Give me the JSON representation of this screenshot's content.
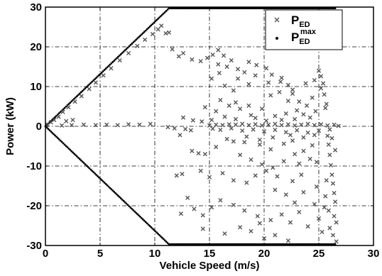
{
  "chart_data": {
    "type": "scatter",
    "xlabel": "Vehicle Speed (m/s)",
    "ylabel": "Power (kW)",
    "xlim": [
      0,
      30
    ],
    "ylim": [
      -30,
      30
    ],
    "xticks": [
      0,
      5,
      10,
      15,
      20,
      25,
      30
    ],
    "yticks": [
      -30,
      -20,
      -10,
      0,
      10,
      20,
      30
    ],
    "grid": true,
    "legend_placement": "top-right",
    "legend": [
      {
        "base": "P",
        "sub": "ED",
        "sup": "",
        "marker": "x"
      },
      {
        "base": "P",
        "sub": "ED",
        "sup": "max",
        "marker": "dot"
      }
    ],
    "series": [
      {
        "legend_index": 1,
        "marker": "dot",
        "color": "#000000",
        "segments": [
          {
            "from": [
              0,
              0
            ],
            "to": [
              11.3,
              29.7
            ],
            "points": 90
          },
          {
            "from": [
              11.3,
              29.7
            ],
            "to": [
              26.5,
              29.7
            ],
            "points": 150
          },
          {
            "from": [
              0,
              0
            ],
            "to": [
              11.3,
              -29.7
            ],
            "points": 90
          },
          {
            "from": [
              11.3,
              -29.7
            ],
            "to": [
              26.5,
              -29.7
            ],
            "points": 150
          }
        ]
      },
      {
        "legend_index": 0,
        "marker": "x",
        "color": "#555555",
        "points": [
          [
            0.2,
            0.4
          ],
          [
            0.5,
            1.0
          ],
          [
            0.8,
            1.6
          ],
          [
            1.2,
            2.4
          ],
          [
            1.6,
            3.6
          ],
          [
            2.1,
            4.8
          ],
          [
            2.7,
            6.2
          ],
          [
            3.3,
            7.6
          ],
          [
            4.0,
            9.4
          ],
          [
            4.6,
            11.0
          ],
          [
            5.3,
            12.8
          ],
          [
            6.0,
            14.6
          ],
          [
            6.8,
            16.6
          ],
          [
            7.6,
            18.4
          ],
          [
            8.4,
            20.2
          ],
          [
            9.1,
            21.8
          ],
          [
            9.8,
            23.2
          ],
          [
            10.3,
            24.4
          ],
          [
            10.6,
            25.3
          ],
          [
            11.0,
            23.4
          ],
          [
            11.3,
            23.6
          ],
          [
            1.5,
            0.2
          ],
          [
            2.4,
            0.3
          ],
          [
            3.5,
            0.4
          ],
          [
            4.6,
            0.3
          ],
          [
            5.6,
            0.4
          ],
          [
            6.6,
            0.3
          ],
          [
            7.6,
            0.5
          ],
          [
            8.6,
            0.4
          ],
          [
            9.6,
            0.6
          ],
          [
            1.9,
            1.3
          ],
          [
            2.5,
            1.6
          ],
          [
            11.2,
            -0.2
          ],
          [
            11.8,
            -0.5
          ],
          [
            12.8,
            -0.7
          ],
          [
            13.3,
            -1.0
          ],
          [
            12.3,
            -2.2
          ],
          [
            12.6,
            2.2
          ],
          [
            13.5,
            1.5
          ],
          [
            14.3,
            1.2
          ],
          [
            11.6,
            19.4
          ],
          [
            12.2,
            17.6
          ],
          [
            12.6,
            18.4
          ],
          [
            13.4,
            16.8
          ],
          [
            14.2,
            16.4
          ],
          [
            14.8,
            17.2
          ],
          [
            15.3,
            18.0
          ],
          [
            15.8,
            19.2
          ],
          [
            16.3,
            17.8
          ],
          [
            17.0,
            16.6
          ],
          [
            17.6,
            14.4
          ],
          [
            18.2,
            13.6
          ],
          [
            18.6,
            16.2
          ],
          [
            19.3,
            15.4
          ],
          [
            20.2,
            14.6
          ],
          [
            20.7,
            13.0
          ],
          [
            21.5,
            11.2
          ],
          [
            22.2,
            10.4
          ],
          [
            15.8,
            15.6
          ],
          [
            15.2,
            12.0
          ],
          [
            16.4,
            10.2
          ],
          [
            16.0,
            6.6
          ],
          [
            17.4,
            6.0
          ],
          [
            18.6,
            5.2
          ],
          [
            19.8,
            4.4
          ],
          [
            20.6,
            7.8
          ],
          [
            21.4,
            8.6
          ],
          [
            22.6,
            8.2
          ],
          [
            23.2,
            6.2
          ],
          [
            23.9,
            5.2
          ],
          [
            24.4,
            7.2
          ],
          [
            25.2,
            9.6
          ],
          [
            25.6,
            4.6
          ],
          [
            24.7,
            3.8
          ],
          [
            22.0,
            3.2
          ],
          [
            21.0,
            2.6
          ],
          [
            19.2,
            2.1
          ],
          [
            17.4,
            1.8
          ],
          [
            16.4,
            2.4
          ],
          [
            15.2,
            1.6
          ],
          [
            15.0,
            0.2
          ],
          [
            15.6,
            0.4
          ],
          [
            16.2,
            0.3
          ],
          [
            16.8,
            0.5
          ],
          [
            17.4,
            0.4
          ],
          [
            18.0,
            0.6
          ],
          [
            18.6,
            0.3
          ],
          [
            19.2,
            0.5
          ],
          [
            19.8,
            0.2
          ],
          [
            20.4,
            0.4
          ],
          [
            21.0,
            0.6
          ],
          [
            21.6,
            0.3
          ],
          [
            22.2,
            0.5
          ],
          [
            22.8,
            0.2
          ],
          [
            23.4,
            0.4
          ],
          [
            24.0,
            0.6
          ],
          [
            24.6,
            0.3
          ],
          [
            25.2,
            0.5
          ],
          [
            25.8,
            0.2
          ],
          [
            26.4,
            0.4
          ],
          [
            26.8,
            0.1
          ],
          [
            15.3,
            -0.6
          ],
          [
            16.0,
            -0.9
          ],
          [
            17.0,
            -0.5
          ],
          [
            18.0,
            -1.1
          ],
          [
            19.0,
            -0.8
          ],
          [
            20.0,
            -1.3
          ],
          [
            21.0,
            -0.9
          ],
          [
            22.0,
            -1.5
          ],
          [
            23.0,
            -1.0
          ],
          [
            24.0,
            -1.6
          ],
          [
            25.0,
            -1.1
          ],
          [
            26.0,
            -0.8
          ],
          [
            16.6,
            -3.2
          ],
          [
            18.2,
            -4.0
          ],
          [
            19.6,
            -4.6
          ],
          [
            20.6,
            -5.8
          ],
          [
            21.8,
            -4.4
          ],
          [
            22.6,
            -3.6
          ],
          [
            23.6,
            -2.8
          ],
          [
            24.6,
            -2.2
          ],
          [
            17.8,
            -7.2
          ],
          [
            18.8,
            -8.4
          ],
          [
            19.8,
            -9.6
          ],
          [
            20.8,
            -10.4
          ],
          [
            21.8,
            -8.8
          ],
          [
            22.8,
            -7.0
          ],
          [
            23.6,
            -6.2
          ],
          [
            24.4,
            -4.8
          ],
          [
            13.4,
            -6.2
          ],
          [
            14.0,
            -6.8
          ],
          [
            14.6,
            -7.0
          ],
          [
            15.6,
            -5.2
          ],
          [
            14.2,
            -11.2
          ],
          [
            15.0,
            -12.8
          ],
          [
            16.2,
            -11.8
          ],
          [
            17.2,
            -13.6
          ],
          [
            18.4,
            -14.2
          ],
          [
            19.2,
            -12.4
          ],
          [
            20.2,
            -11.2
          ],
          [
            21.2,
            -12.6
          ],
          [
            22.6,
            -13.8
          ],
          [
            23.4,
            -12.2
          ],
          [
            12.0,
            -12.4
          ],
          [
            12.5,
            -12.0
          ],
          [
            13.0,
            -18.0
          ],
          [
            13.6,
            -20.8
          ],
          [
            14.4,
            -22.4
          ],
          [
            15.2,
            -20.4
          ],
          [
            16.0,
            -18.6
          ],
          [
            17.2,
            -19.8
          ],
          [
            18.2,
            -21.2
          ],
          [
            19.4,
            -22.6
          ],
          [
            20.6,
            -23.6
          ],
          [
            21.6,
            -22.2
          ],
          [
            22.4,
            -24.2
          ],
          [
            23.2,
            -21.6
          ],
          [
            24.0,
            -25.2
          ],
          [
            16.4,
            -27.0
          ],
          [
            17.8,
            -25.4
          ],
          [
            18.8,
            -26.4
          ],
          [
            19.6,
            -24.4
          ],
          [
            20.0,
            -28.2
          ],
          [
            21.0,
            -27.4
          ],
          [
            22.2,
            -28.8
          ],
          [
            14.4,
            -25.8
          ],
          [
            12.4,
            -22.0
          ],
          [
            25.2,
            12.6
          ],
          [
            25.0,
            14.0
          ],
          [
            25.4,
            10.8
          ],
          [
            25.5,
            8.0
          ],
          [
            25.7,
            5.6
          ],
          [
            25.8,
            -2.4
          ],
          [
            25.9,
            -4.6
          ],
          [
            26.0,
            -7.2
          ],
          [
            26.1,
            -9.8
          ],
          [
            26.2,
            -12.2
          ],
          [
            26.3,
            -14.4
          ],
          [
            26.4,
            -16.8
          ],
          [
            26.5,
            -19.0
          ],
          [
            25.7,
            -13.6
          ],
          [
            25.6,
            -17.6
          ],
          [
            25.5,
            -20.4
          ],
          [
            26.4,
            -22.6
          ],
          [
            26.0,
            -25.6
          ],
          [
            26.3,
            -27.4
          ],
          [
            26.6,
            -24.2
          ],
          [
            25.9,
            -21.2
          ],
          [
            26.2,
            -3.0
          ],
          [
            26.5,
            -6.0
          ],
          [
            19.2,
            12.8
          ],
          [
            20.4,
            11.0
          ],
          [
            21.6,
            12.2
          ],
          [
            22.6,
            9.2
          ],
          [
            23.0,
            4.0
          ],
          [
            23.6,
            3.0
          ],
          [
            22.4,
            -2.2
          ],
          [
            20.8,
            -2.8
          ],
          [
            19.6,
            -3.4
          ],
          [
            18.4,
            -2.6
          ],
          [
            17.2,
            -3.8
          ],
          [
            21.6,
            1.6
          ],
          [
            22.8,
            1.8
          ],
          [
            24.2,
            2.2
          ],
          [
            20.2,
            1.4
          ],
          [
            18.8,
            2.8
          ],
          [
            17.8,
            4.4
          ],
          [
            16.8,
            5.2
          ],
          [
            15.6,
            3.8
          ],
          [
            14.6,
            4.8
          ],
          [
            23.8,
            10.8
          ],
          [
            24.6,
            11.6
          ],
          [
            22.2,
            6.4
          ],
          [
            24.2,
            -8.2
          ],
          [
            23.2,
            -9.4
          ],
          [
            24.8,
            -9.0
          ],
          [
            21.0,
            -16.0
          ],
          [
            22.0,
            -17.2
          ],
          [
            23.6,
            -16.6
          ],
          [
            24.8,
            -15.2
          ],
          [
            22.8,
            -19.2
          ],
          [
            24.6,
            -19.6
          ],
          [
            25.0,
            -23.2
          ],
          [
            25.3,
            -26.6
          ],
          [
            26.6,
            -29.0
          ],
          [
            15.9,
            13.4
          ],
          [
            16.6,
            15.0
          ],
          [
            17.6,
            12.0
          ],
          [
            18.6,
            10.6
          ],
          [
            17.2,
            9.0
          ]
        ]
      }
    ]
  }
}
